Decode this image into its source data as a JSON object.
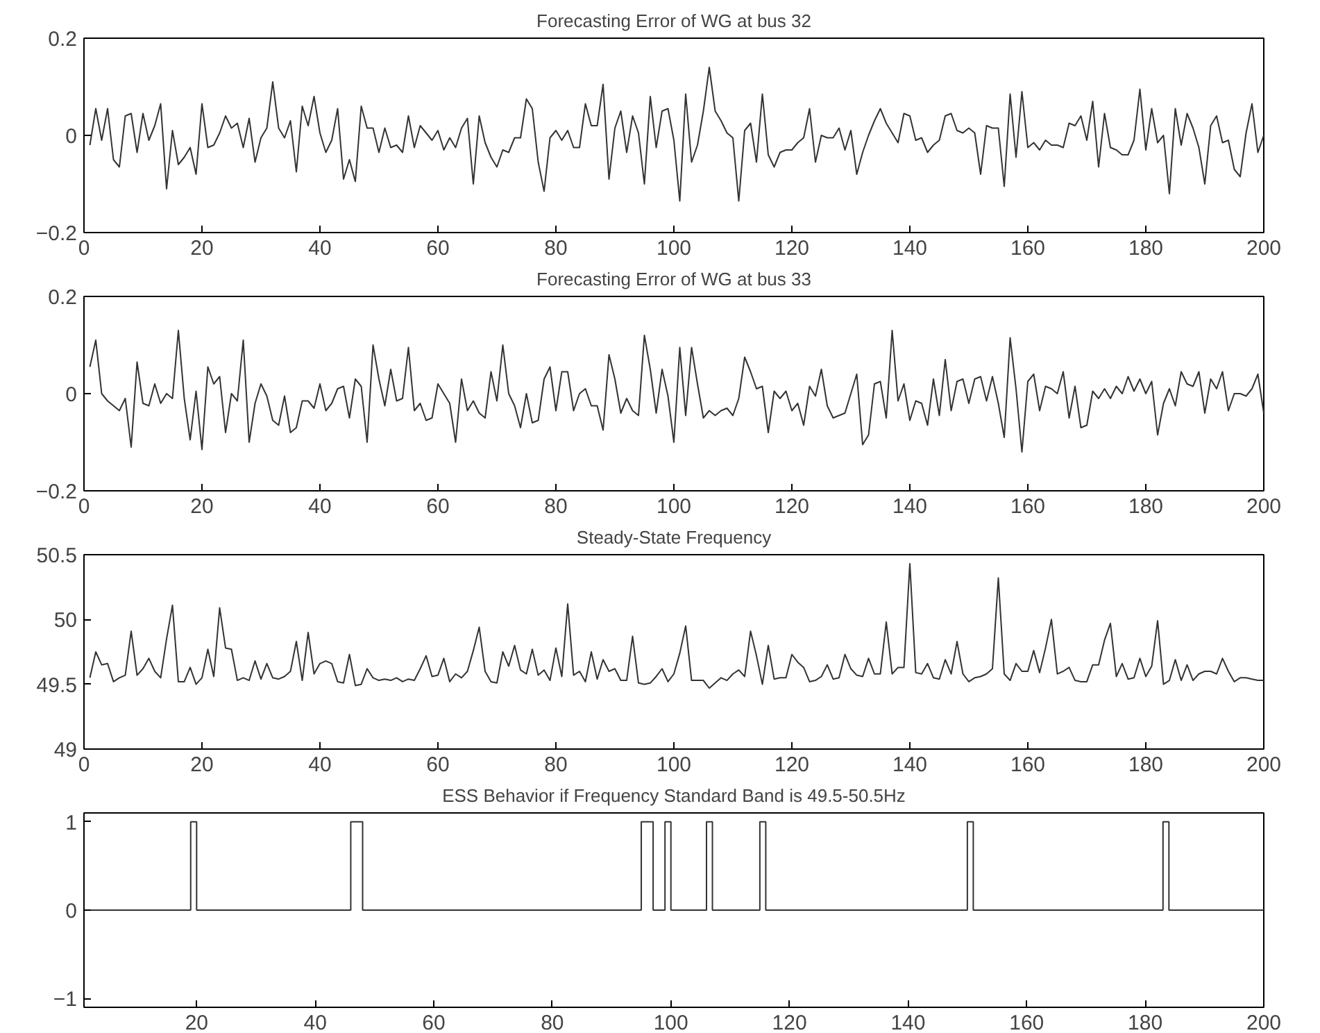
{
  "chart_data": [
    {
      "type": "line",
      "title": "Forecasting Error of WG at bus 32",
      "xlim": [
        0,
        200
      ],
      "ylim": [
        -0.2,
        0.2
      ],
      "xticks": [
        0,
        20,
        40,
        60,
        80,
        100,
        120,
        140,
        160,
        180,
        200
      ],
      "yticks": [
        -0.2,
        0,
        0.2
      ],
      "grid": false,
      "x": [
        1,
        2,
        3,
        4,
        5,
        6,
        7,
        8,
        9,
        10,
        11,
        12,
        13,
        14,
        15,
        16,
        17,
        18,
        19,
        20,
        21,
        22,
        23,
        24,
        25,
        26,
        27,
        28,
        29,
        30,
        31,
        32,
        33,
        34,
        35,
        36,
        37,
        38,
        39,
        40,
        41,
        42,
        43,
        44,
        45,
        46,
        47,
        48,
        49,
        50,
        51,
        52,
        53,
        54,
        55,
        56,
        57,
        58,
        59,
        60,
        61,
        62,
        63,
        64,
        65,
        66,
        67,
        68,
        69,
        70,
        71,
        72,
        73,
        74,
        75,
        76,
        77,
        78,
        79,
        80,
        81,
        82,
        83,
        84,
        85,
        86,
        87,
        88,
        89,
        90,
        91,
        92,
        93,
        94,
        95,
        96,
        97,
        98,
        99,
        100,
        101,
        102,
        103,
        104,
        105,
        106,
        107,
        108,
        109,
        110,
        111,
        112,
        113,
        114,
        115,
        116,
        117,
        118,
        119,
        120,
        121,
        122,
        123,
        124,
        125,
        126,
        127,
        128,
        129,
        130,
        131,
        132,
        133,
        134,
        135,
        136,
        137,
        138,
        139,
        140,
        141,
        142,
        143,
        144,
        145,
        146,
        147,
        148,
        149,
        150,
        151,
        152,
        153,
        154,
        155,
        156,
        157,
        158,
        159,
        160,
        161,
        162,
        163,
        164,
        165,
        166,
        167,
        168,
        169,
        170,
        171,
        172,
        173,
        174,
        175,
        176,
        177,
        178,
        179,
        180,
        181,
        182,
        183,
        184,
        185,
        186,
        187,
        188,
        189,
        190,
        191,
        192,
        193,
        194,
        195,
        196,
        197,
        198,
        199,
        200
      ],
      "series": [
        {
          "color": "#333333",
          "values": [
            -0.02,
            0.055,
            -0.01,
            0.055,
            -0.05,
            -0.065,
            0.04,
            0.045,
            -0.035,
            0.045,
            -0.01,
            0.02,
            0.065,
            -0.11,
            0.01,
            -0.06,
            -0.045,
            -0.025,
            -0.08,
            0.065,
            -0.025,
            -0.02,
            0.005,
            0.04,
            0.015,
            0.025,
            -0.025,
            0.035,
            -0.055,
            -0.005,
            0.015,
            0.11,
            0.015,
            -0.005,
            0.03,
            -0.075,
            0.06,
            0.02,
            0.08,
            0.005,
            -0.035,
            -0.01,
            0.055,
            -0.09,
            -0.05,
            -0.095,
            0.06,
            0.015,
            0.015,
            -0.035,
            0.015,
            -0.025,
            -0.02,
            -0.035,
            0.04,
            -0.025,
            0.02,
            0.005,
            -0.01,
            0.01,
            -0.03,
            -0.005,
            -0.025,
            0.015,
            0.035,
            -0.1,
            0.04,
            -0.015,
            -0.045,
            -0.065,
            -0.03,
            -0.035,
            -0.005,
            -0.005,
            0.075,
            0.055,
            -0.055,
            -0.115,
            -0.005,
            0.01,
            -0.01,
            0.01,
            -0.025,
            -0.025,
            0.065,
            0.02,
            0.02,
            0.105,
            -0.09,
            0.015,
            0.05,
            -0.035,
            0.04,
            0.005,
            -0.1,
            0.08,
            -0.025,
            0.05,
            0.055,
            -0.01,
            -0.135,
            0.085,
            -0.055,
            -0.02,
            0.05,
            0.14,
            0.05,
            0.03,
            0.005,
            -0.005,
            -0.135,
            0.01,
            0.025,
            -0.055,
            0.085,
            -0.04,
            -0.065,
            -0.035,
            -0.03,
            -0.03,
            -0.015,
            -0.005,
            0.055,
            -0.055,
            0.0,
            -0.005,
            -0.005,
            0.015,
            -0.03,
            0.01,
            -0.08,
            -0.035,
            0.0,
            0.03,
            0.055,
            0.025,
            0.005,
            -0.015,
            0.045,
            0.04,
            -0.01,
            -0.005,
            -0.035,
            -0.02,
            -0.01,
            0.04,
            0.045,
            0.01,
            0.005,
            0.015,
            0.005,
            -0.08,
            0.02,
            0.015,
            0.015,
            -0.105,
            0.085,
            -0.045,
            0.09,
            -0.025,
            -0.015,
            -0.03,
            -0.01,
            -0.02,
            -0.02,
            -0.025,
            0.025,
            0.02,
            0.04,
            -0.01,
            0.07,
            -0.065,
            0.045,
            -0.025,
            -0.03,
            -0.04,
            -0.04,
            -0.01,
            0.095,
            -0.03,
            0.055,
            -0.015,
            0.0,
            -0.12,
            0.055,
            -0.02,
            0.045,
            0.015,
            -0.025,
            -0.1,
            0.02,
            0.04,
            -0.015,
            -0.01,
            -0.07,
            -0.085,
            0.005,
            0.065,
            -0.035,
            0.0
          ]
        }
      ]
    },
    {
      "type": "line",
      "title": "Forecasting Error of WG at bus 33",
      "xlim": [
        0,
        200
      ],
      "ylim": [
        -0.2,
        0.2
      ],
      "xticks": [
        0,
        20,
        40,
        60,
        80,
        100,
        120,
        140,
        160,
        180,
        200
      ],
      "yticks": [
        -0.2,
        0,
        0.2
      ],
      "grid": false,
      "x": [
        1,
        2,
        3,
        4,
        5,
        6,
        7,
        8,
        9,
        10,
        11,
        12,
        13,
        14,
        15,
        16,
        17,
        18,
        19,
        20,
        21,
        22,
        23,
        24,
        25,
        26,
        27,
        28,
        29,
        30,
        31,
        32,
        33,
        34,
        35,
        36,
        37,
        38,
        39,
        40,
        41,
        42,
        43,
        44,
        45,
        46,
        47,
        48,
        49,
        50,
        51,
        52,
        53,
        54,
        55,
        56,
        57,
        58,
        59,
        60,
        61,
        62,
        63,
        64,
        65,
        66,
        67,
        68,
        69,
        70,
        71,
        72,
        73,
        74,
        75,
        76,
        77,
        78,
        79,
        80,
        81,
        82,
        83,
        84,
        85,
        86,
        87,
        88,
        89,
        90,
        91,
        92,
        93,
        94,
        95,
        96,
        97,
        98,
        99,
        100,
        101,
        102,
        103,
        104,
        105,
        106,
        107,
        108,
        109,
        110,
        111,
        112,
        113,
        114,
        115,
        116,
        117,
        118,
        119,
        120,
        121,
        122,
        123,
        124,
        125,
        126,
        127,
        128,
        129,
        130,
        131,
        132,
        133,
        134,
        135,
        136,
        137,
        138,
        139,
        140,
        141,
        142,
        143,
        144,
        145,
        146,
        147,
        148,
        149,
        150,
        151,
        152,
        153,
        154,
        155,
        156,
        157,
        158,
        159,
        160,
        161,
        162,
        163,
        164,
        165,
        166,
        167,
        168,
        169,
        170,
        171,
        172,
        173,
        174,
        175,
        176,
        177,
        178,
        179,
        180,
        181,
        182,
        183,
        184,
        185,
        186,
        187,
        188,
        189,
        190,
        191,
        192,
        193,
        194,
        195,
        196,
        197,
        198,
        199,
        200
      ],
      "series": [
        {
          "color": "#333333",
          "values": [
            0.055,
            0.11,
            0.0,
            -0.015,
            -0.025,
            -0.035,
            -0.01,
            -0.11,
            0.065,
            -0.02,
            -0.025,
            0.02,
            -0.02,
            0.0,
            -0.01,
            0.13,
            -0.01,
            -0.095,
            0.005,
            -0.115,
            0.055,
            0.02,
            0.035,
            -0.08,
            0.0,
            -0.015,
            0.11,
            -0.1,
            -0.02,
            0.02,
            -0.005,
            -0.055,
            -0.065,
            -0.005,
            -0.08,
            -0.07,
            -0.015,
            -0.015,
            -0.03,
            0.02,
            -0.035,
            -0.02,
            0.01,
            0.015,
            -0.05,
            0.03,
            0.015,
            -0.1,
            0.1,
            0.03,
            -0.025,
            0.05,
            -0.015,
            -0.01,
            0.095,
            -0.035,
            -0.02,
            -0.055,
            -0.05,
            0.02,
            0.0,
            -0.02,
            -0.1,
            0.03,
            -0.035,
            -0.015,
            -0.04,
            -0.05,
            0.045,
            -0.015,
            0.1,
            0.0,
            -0.025,
            -0.07,
            0.0,
            -0.06,
            -0.055,
            0.03,
            0.055,
            -0.035,
            0.045,
            0.045,
            -0.035,
            0.0,
            0.01,
            -0.025,
            -0.025,
            -0.075,
            0.08,
            0.03,
            -0.04,
            -0.01,
            -0.035,
            -0.045,
            0.12,
            0.05,
            -0.04,
            0.05,
            -0.005,
            -0.1,
            0.095,
            -0.045,
            0.095,
            0.02,
            -0.05,
            -0.035,
            -0.045,
            -0.035,
            -0.03,
            -0.045,
            -0.01,
            0.075,
            0.045,
            0.01,
            0.015,
            -0.08,
            0.005,
            -0.01,
            0.005,
            -0.035,
            -0.02,
            -0.065,
            0.015,
            -0.005,
            0.05,
            -0.025,
            -0.05,
            -0.045,
            -0.04,
            0.0,
            0.04,
            -0.105,
            -0.085,
            0.02,
            0.025,
            -0.05,
            0.13,
            -0.015,
            0.02,
            -0.055,
            -0.015,
            -0.02,
            -0.065,
            0.03,
            -0.045,
            0.07,
            -0.035,
            0.025,
            0.03,
            -0.02,
            0.03,
            0.035,
            -0.015,
            0.035,
            -0.02,
            -0.09,
            0.115,
            0.01,
            -0.12,
            0.025,
            0.04,
            -0.035,
            0.015,
            0.01,
            0.0,
            0.045,
            -0.05,
            0.015,
            -0.07,
            -0.065,
            0.005,
            -0.01,
            0.01,
            -0.01,
            0.015,
            0.0,
            0.035,
            0.005,
            0.03,
            0.0,
            0.025,
            -0.085,
            -0.02,
            0.01,
            -0.025,
            0.045,
            0.02,
            0.015,
            0.045,
            -0.04,
            0.03,
            0.01,
            0.045,
            -0.035,
            0.0,
            0.0,
            -0.005,
            0.01,
            0.04,
            -0.04
          ]
        }
      ]
    },
    {
      "type": "line",
      "title": "Steady-State Frequency",
      "xlim": [
        0,
        200
      ],
      "ylim": [
        49,
        50.5
      ],
      "xticks": [
        0,
        20,
        40,
        60,
        80,
        100,
        120,
        140,
        160,
        180,
        200
      ],
      "yticks": [
        49,
        49.5,
        50,
        50.5
      ],
      "grid": false,
      "x": [
        1,
        2,
        3,
        4,
        5,
        6,
        7,
        8,
        9,
        10,
        11,
        12,
        13,
        14,
        15,
        16,
        17,
        18,
        19,
        20,
        21,
        22,
        23,
        24,
        25,
        26,
        27,
        28,
        29,
        30,
        31,
        32,
        33,
        34,
        35,
        36,
        37,
        38,
        39,
        40,
        41,
        42,
        43,
        44,
        45,
        46,
        47,
        48,
        49,
        50,
        51,
        52,
        53,
        54,
        55,
        56,
        57,
        58,
        59,
        60,
        61,
        62,
        63,
        64,
        65,
        66,
        67,
        68,
        69,
        70,
        71,
        72,
        73,
        74,
        75,
        76,
        77,
        78,
        79,
        80,
        81,
        82,
        83,
        84,
        85,
        86,
        87,
        88,
        89,
        90,
        91,
        92,
        93,
        94,
        95,
        96,
        97,
        98,
        99,
        100,
        101,
        102,
        103,
        104,
        105,
        106,
        107,
        108,
        109,
        110,
        111,
        112,
        113,
        114,
        115,
        116,
        117,
        118,
        119,
        120,
        121,
        122,
        123,
        124,
        125,
        126,
        127,
        128,
        129,
        130,
        131,
        132,
        133,
        134,
        135,
        136,
        137,
        138,
        139,
        140,
        141,
        142,
        143,
        144,
        145,
        146,
        147,
        148,
        149,
        150,
        151,
        152,
        153,
        154,
        155,
        156,
        157,
        158,
        159,
        160,
        161,
        162,
        163,
        164,
        165,
        166,
        167,
        168,
        169,
        170,
        171,
        172,
        173,
        174,
        175,
        176,
        177,
        178,
        179,
        180,
        181,
        182,
        183,
        184,
        185,
        186,
        187,
        188,
        189,
        190,
        191,
        192,
        193,
        194,
        195,
        196,
        197,
        198,
        199,
        200
      ],
      "series": [
        {
          "color": "#333333",
          "values": [
            49.55,
            49.75,
            49.65,
            49.66,
            49.52,
            49.55,
            49.57,
            49.91,
            49.57,
            49.62,
            49.7,
            49.6,
            49.55,
            49.85,
            50.11,
            49.52,
            49.52,
            49.63,
            49.5,
            49.55,
            49.77,
            49.56,
            50.09,
            49.78,
            49.77,
            49.53,
            49.55,
            49.53,
            49.68,
            49.54,
            49.66,
            49.55,
            49.54,
            49.56,
            49.6,
            49.83,
            49.53,
            49.9,
            49.58,
            49.66,
            49.68,
            49.66,
            49.52,
            49.51,
            49.73,
            49.49,
            49.5,
            49.62,
            49.55,
            49.53,
            49.54,
            49.53,
            49.55,
            49.52,
            49.54,
            49.53,
            49.62,
            49.72,
            49.56,
            49.57,
            49.7,
            49.52,
            49.58,
            49.55,
            49.6,
            49.76,
            49.94,
            49.6,
            49.52,
            49.51,
            49.75,
            49.64,
            49.8,
            49.61,
            49.58,
            49.77,
            49.57,
            49.61,
            49.53,
            49.78,
            49.56,
            50.12,
            49.57,
            49.6,
            49.52,
            49.75,
            49.54,
            49.69,
            49.6,
            49.62,
            49.53,
            49.53,
            49.87,
            49.51,
            49.5,
            49.51,
            49.56,
            49.62,
            49.52,
            49.58,
            49.74,
            49.95,
            49.53,
            49.53,
            49.53,
            49.47,
            49.51,
            49.55,
            49.53,
            49.58,
            49.61,
            49.56,
            49.91,
            49.72,
            49.5,
            49.8,
            49.54,
            49.55,
            49.55,
            49.73,
            49.67,
            49.63,
            49.52,
            49.53,
            49.56,
            49.65,
            49.54,
            49.55,
            49.73,
            49.62,
            49.57,
            49.56,
            49.7,
            49.58,
            49.58,
            49.98,
            49.58,
            49.63,
            49.63,
            50.43,
            49.59,
            49.58,
            49.66,
            49.55,
            49.54,
            49.69,
            49.58,
            49.83,
            49.58,
            49.52,
            49.55,
            49.56,
            49.58,
            49.62,
            50.32,
            49.58,
            49.53,
            49.66,
            49.6,
            49.6,
            49.76,
            49.59,
            49.78,
            50.0,
            49.58,
            49.6,
            49.63,
            49.53,
            49.52,
            49.52,
            49.65,
            49.65,
            49.84,
            49.97,
            49.56,
            49.66,
            49.54,
            49.55,
            49.7,
            49.56,
            49.64,
            49.99,
            49.5,
            49.53,
            49.69,
            49.53,
            49.65,
            49.53,
            49.58,
            49.6,
            49.6,
            49.58,
            49.7,
            49.6,
            49.52,
            49.55,
            49.55,
            49.54,
            49.53,
            49.53
          ]
        }
      ]
    },
    {
      "type": "step",
      "title": "ESS Behavior if Frequency Standard Band is 49.5-50.5Hz",
      "xlim": [
        1,
        200
      ],
      "ylim": [
        -1.1,
        1.1
      ],
      "xticks": [
        20,
        40,
        60,
        80,
        100,
        120,
        140,
        160,
        180,
        200
      ],
      "yticks": [
        -1,
        0,
        1
      ],
      "grid": false,
      "x": [
        1,
        19,
        20,
        46,
        48,
        95,
        97,
        99,
        100,
        106,
        107,
        115,
        116,
        150,
        151,
        183,
        184,
        200
      ],
      "series": [
        {
          "color": "#333333",
          "values": [
            0,
            1,
            0,
            1,
            0,
            1,
            0,
            1,
            0,
            1,
            0,
            1,
            0,
            1,
            0,
            1,
            0,
            0
          ]
        }
      ]
    }
  ]
}
